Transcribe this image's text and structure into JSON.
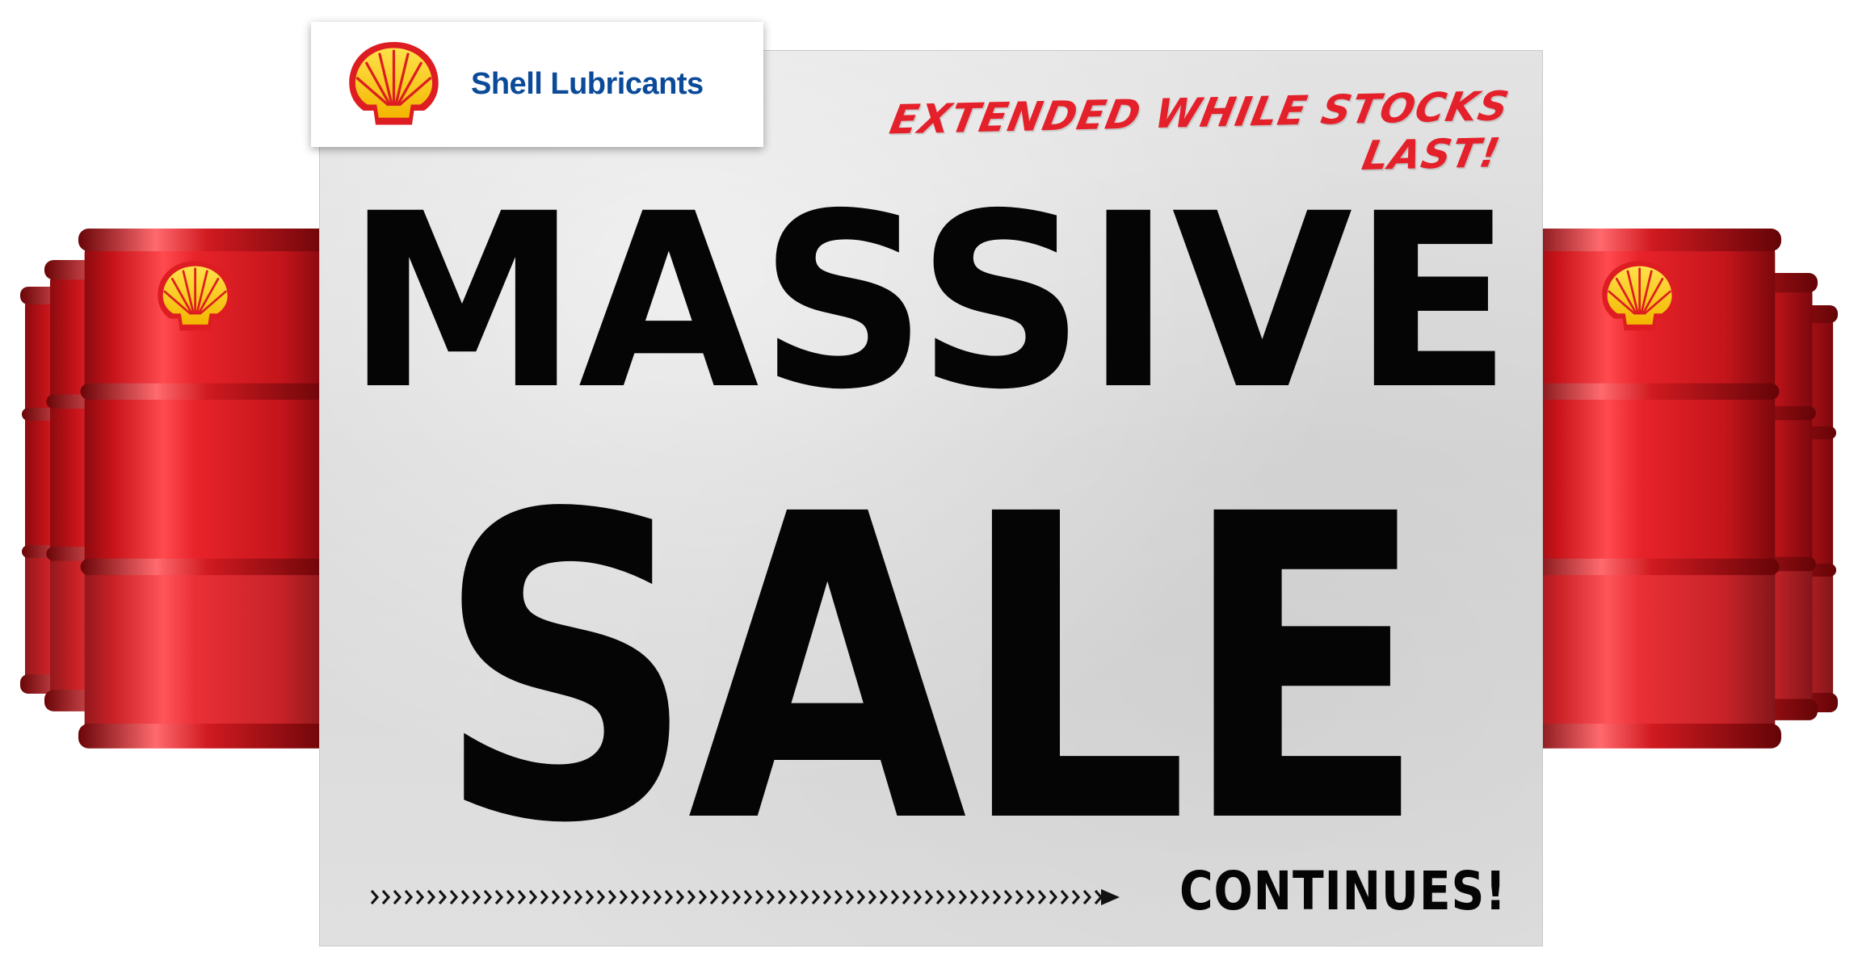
{
  "brand": {
    "name": "Shell Lubricants"
  },
  "promo": {
    "tagline": "EXTENDED WHILE STOCKS LAST!",
    "headline_line1": "MASSIVE",
    "headline_line2": "SALE",
    "headline_suffix": "CONTINUES!"
  },
  "icons": {
    "logo": "shell-pecten-icon",
    "barrel": "oil-drum-icon",
    "divider": "chevron-arrow-icon"
  },
  "colors": {
    "brand_blue": "#0a4a99",
    "shell_red": "#dd1d21",
    "shell_yellow": "#fbce07",
    "tagline_red": "#e4202b",
    "headline_black": "#050505",
    "poster_grey": "#dcdcdc"
  }
}
